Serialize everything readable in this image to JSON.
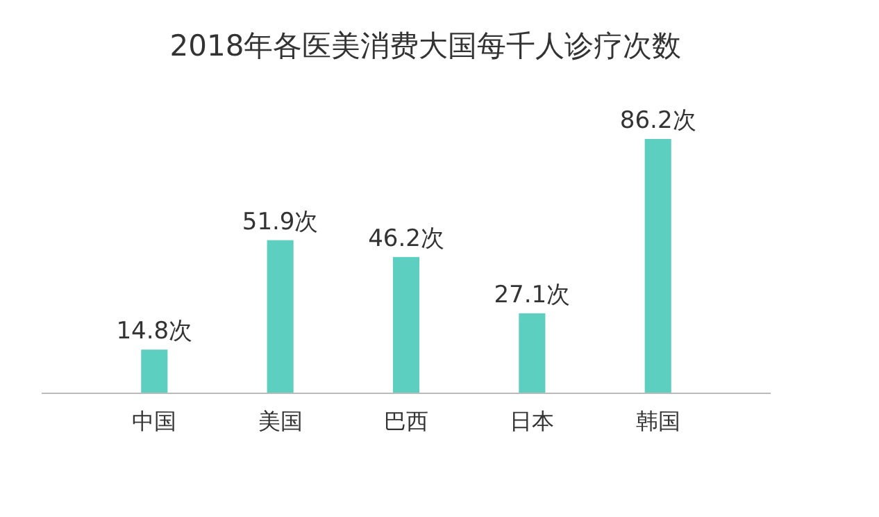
{
  "chart_data": {
    "type": "bar",
    "title": "2018年各医美消费大国每千人诊疗次数",
    "categories": [
      "中国",
      "美国",
      "巴西",
      "日本",
      "韩国"
    ],
    "values": [
      14.8,
      51.9,
      46.2,
      27.1,
      86.2
    ],
    "value_labels": [
      "14.8次",
      "51.9次",
      "46.2次",
      "27.1次",
      "86.2次"
    ],
    "color": "#5ccfc1"
  }
}
